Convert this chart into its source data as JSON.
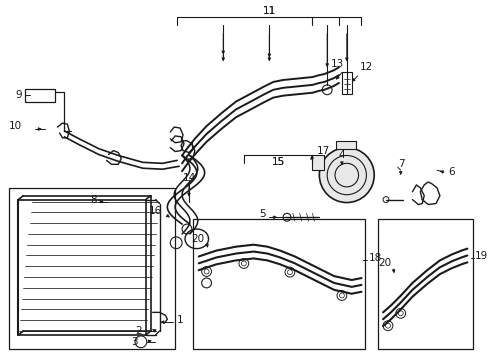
{
  "bg_color": "#ffffff",
  "line_color": "#1a1a1a",
  "fs": 7.5,
  "fig_w": 4.89,
  "fig_h": 3.6,
  "dpi": 100
}
